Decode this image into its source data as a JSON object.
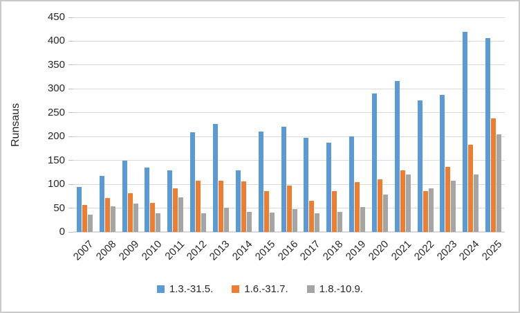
{
  "window": {
    "background": "#FFFFFF",
    "border_color": "#C9C9C9",
    "text_color": "#262626",
    "gridline_color": "#D9D9D9",
    "tick_color": "#BFBFBF"
  },
  "chart_data": {
    "type": "bar",
    "title": "",
    "xlabel": "",
    "ylabel": "Runsaus",
    "ylim": [
      0,
      450
    ],
    "yticks": [
      0,
      50,
      100,
      150,
      200,
      250,
      300,
      350,
      400,
      450
    ],
    "grid": true,
    "legend_position": "bottom",
    "categories": [
      "2007",
      "2008",
      "2009",
      "2010",
      "2011",
      "2012",
      "2013",
      "2014",
      "2015",
      "2016",
      "2017",
      "2018",
      "2019",
      "2020",
      "2021",
      "2022",
      "2023",
      "2024",
      "2025"
    ],
    "series": [
      {
        "name": "1.3.-31.5.",
        "color": "#5B9BD5",
        "values": [
          95,
          118,
          150,
          135,
          129,
          209,
          226,
          129,
          210,
          220,
          198,
          188,
          200,
          291,
          317,
          276,
          288,
          420,
          407
        ]
      },
      {
        "name": "1.6.-31.7.",
        "color": "#ED7D31",
        "values": [
          57,
          71,
          82,
          61,
          92,
          107,
          108,
          106,
          85,
          98,
          66,
          86,
          105,
          110,
          129,
          86,
          137,
          183,
          238
        ]
      },
      {
        "name": "1.8.-10.9.",
        "color": "#A5A5A5",
        "values": [
          37,
          54,
          60,
          39,
          73,
          39,
          51,
          42,
          40,
          48,
          39,
          42,
          52,
          79,
          121,
          92,
          107,
          120,
          205
        ]
      }
    ]
  }
}
